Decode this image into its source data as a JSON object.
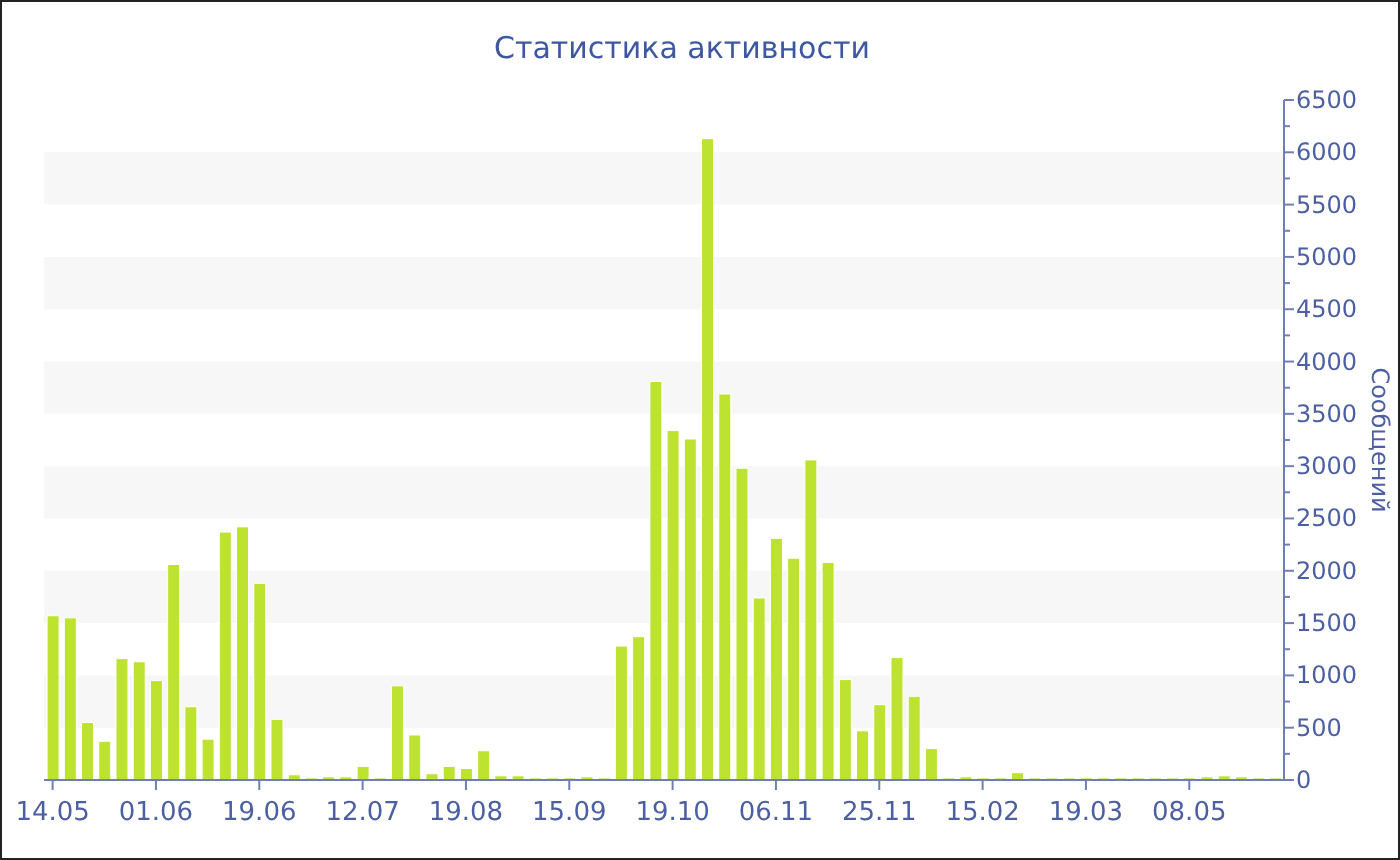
{
  "chart_data": {
    "type": "bar",
    "title": "Статистика активности",
    "ylabel": "Сообщений",
    "categories": [
      "14.05",
      null,
      null,
      null,
      null,
      null,
      "01.06",
      null,
      null,
      null,
      null,
      null,
      "19.06",
      null,
      null,
      null,
      null,
      null,
      "12.07",
      null,
      null,
      null,
      null,
      null,
      "19.08",
      null,
      null,
      null,
      null,
      null,
      "15.09",
      null,
      null,
      null,
      null,
      null,
      "19.10",
      null,
      null,
      null,
      null,
      null,
      "06.11",
      null,
      null,
      null,
      null,
      null,
      "25.11",
      null,
      null,
      null,
      null,
      null,
      "15.02",
      null,
      null,
      null,
      null,
      null,
      "19.03",
      null,
      null,
      null,
      null,
      null,
      "08.05",
      null,
      null,
      null,
      null,
      null
    ],
    "values": [
      1570,
      1550,
      550,
      370,
      1160,
      1130,
      950,
      2060,
      700,
      390,
      2370,
      2420,
      1880,
      580,
      50,
      20,
      30,
      30,
      130,
      20,
      900,
      430,
      60,
      130,
      110,
      280,
      40,
      40,
      20,
      20,
      20,
      30,
      20,
      1280,
      1370,
      3810,
      3340,
      3260,
      6130,
      3690,
      2980,
      1740,
      2310,
      2120,
      3060,
      2080,
      960,
      470,
      720,
      1170,
      800,
      300,
      20,
      30,
      20,
      20,
      70,
      20,
      20,
      20,
      20,
      20,
      20,
      20,
      20,
      20,
      20,
      30,
      40,
      30,
      20,
      20
    ],
    "color": "#bde22f",
    "ylim": [
      0,
      6500
    ],
    "yticks": [
      0,
      {
        "value": 250,
        "label": null
      },
      500,
      {
        "value": 750,
        "label": null
      },
      1000,
      {
        "value": 1250,
        "label": null
      },
      1500,
      {
        "value": 1750,
        "label": null
      },
      2000,
      {
        "value": 2250,
        "label": null
      },
      2500,
      {
        "value": 2750,
        "label": null
      },
      3000,
      {
        "value": 3250,
        "label": null
      },
      3500,
      {
        "value": 3750,
        "label": null
      },
      4000,
      {
        "value": 4250,
        "label": null
      },
      4500,
      {
        "value": 4750,
        "label": null
      },
      5000,
      {
        "value": 5250,
        "label": null
      },
      5500,
      {
        "value": 5750,
        "label": null
      },
      6000,
      {
        "value": 6250,
        "label": null
      },
      6500
    ],
    "bands": [
      {
        "axis": "y",
        "from": 500,
        "to": 1000,
        "color": "#f7f7f7"
      },
      {
        "axis": "y",
        "from": 1500,
        "to": 2000,
        "color": "#f7f7f7"
      },
      {
        "axis": "y",
        "from": 2500,
        "to": 3000,
        "color": "#f7f7f7"
      },
      {
        "axis": "y",
        "from": 3500,
        "to": 4000,
        "color": "#f7f7f7"
      },
      {
        "axis": "y",
        "from": 4500,
        "to": 5000,
        "color": "#f7f7f7"
      },
      {
        "axis": "y",
        "from": 5500,
        "to": 6000,
        "color": "#f7f7f7"
      }
    ],
    "grid": false,
    "legend": false
  }
}
